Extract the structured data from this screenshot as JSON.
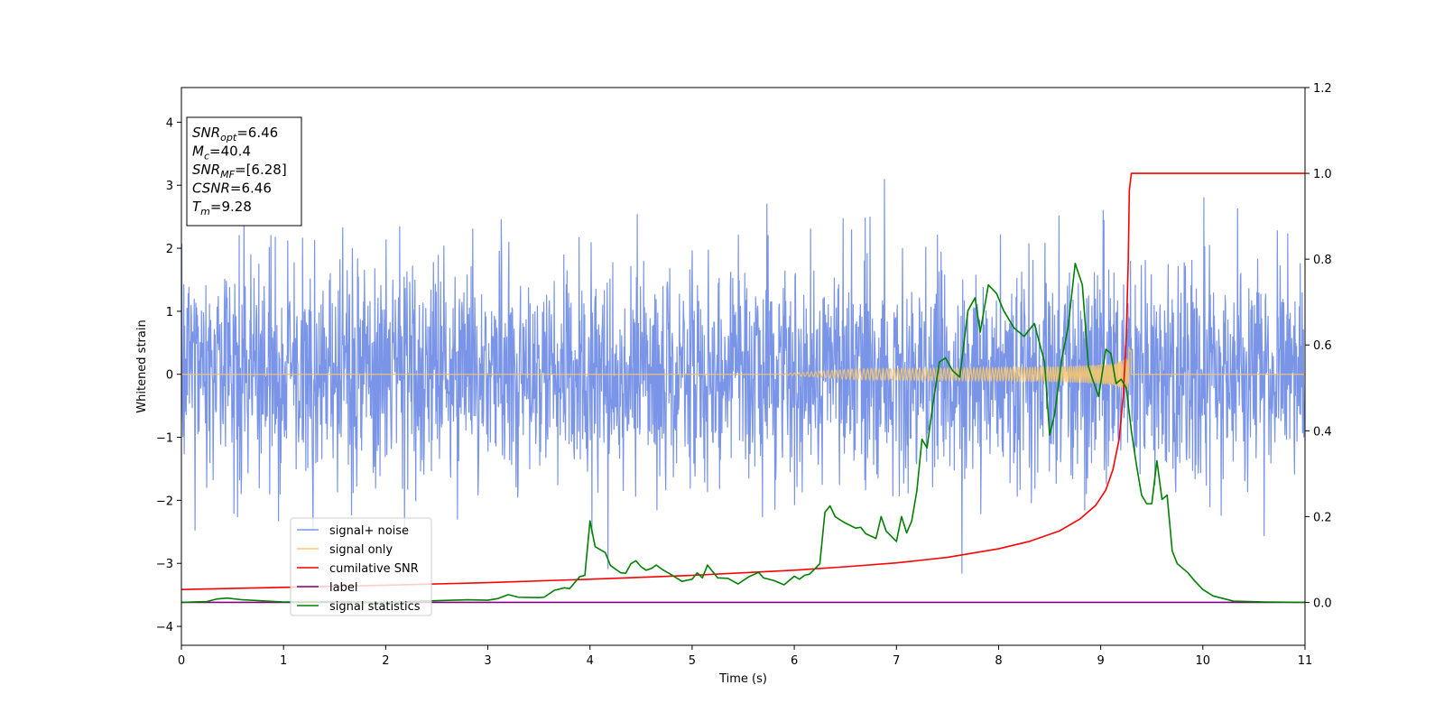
{
  "chart_data": {
    "type": "line",
    "xlabel": "Time (s)",
    "ylabel": "Whitened strain",
    "xlim": [
      0,
      11
    ],
    "ylim_left": [
      -4.3,
      4.55
    ],
    "ylim_right": [
      -0.1,
      1.2
    ],
    "x_ticks": [
      "0",
      "1",
      "2",
      "3",
      "4",
      "5",
      "6",
      "7",
      "8",
      "9",
      "10",
      "11"
    ],
    "y_left_ticks": [
      "−4",
      "−3",
      "−2",
      "−1",
      "0",
      "1",
      "2",
      "3",
      "4"
    ],
    "y_right_ticks": [
      "0.0",
      "0.2",
      "0.4",
      "0.6",
      "0.8",
      "1.0",
      "1.2"
    ],
    "legend_position": "lower-left",
    "grid": false,
    "info_box": {
      "position": "top-left",
      "lines": [
        {
          "base": "SNR",
          "sub": "opt",
          "value": "=6.46"
        },
        {
          "base": "M",
          "sub": "c",
          "value": "=40.4"
        },
        {
          "base": "SNR",
          "sub": "MF",
          "value": "=[6.28]"
        },
        {
          "base": "CSNR",
          "sub": "",
          "value": "=6.46"
        },
        {
          "base": "T",
          "sub": "m",
          "value": "=9.28"
        }
      ]
    },
    "series": [
      {
        "name": "signal+ noise",
        "color": "#7a95e8",
        "axis": "left",
        "style": "noise",
        "noise_sigma": 0.85,
        "noise_samples": 2800
      },
      {
        "name": "signal only",
        "color": "#f5c56e",
        "axis": "left",
        "style": "chirp",
        "merger_time": 9.28,
        "start_time": 5.8,
        "peak_amplitude": 0.45
      },
      {
        "name": "cumilative SNR",
        "color": "#ff0000",
        "axis": "right",
        "x": [
          0,
          1,
          2,
          3,
          4,
          5,
          6,
          6.5,
          7,
          7.5,
          8,
          8.3,
          8.6,
          8.8,
          8.95,
          9.05,
          9.12,
          9.18,
          9.22,
          9.25,
          9.27,
          9.28,
          9.3,
          11
        ],
        "y": [
          0.03,
          0.035,
          0.04,
          0.046,
          0.054,
          0.063,
          0.075,
          0.083,
          0.092,
          0.105,
          0.125,
          0.142,
          0.167,
          0.195,
          0.226,
          0.262,
          0.31,
          0.38,
          0.48,
          0.62,
          0.8,
          0.96,
          1.0,
          1.0
        ]
      },
      {
        "name": "label",
        "color": "#800080",
        "axis": "right",
        "x": [
          0,
          11
        ],
        "y": [
          0,
          0
        ]
      },
      {
        "name": "signal statistics",
        "color": "#008000",
        "axis": "right",
        "x": [
          0,
          0.25,
          0.35,
          0.45,
          0.6,
          1.0,
          1.5,
          2.0,
          2.5,
          2.8,
          3.0,
          3.1,
          3.2,
          3.3,
          3.5,
          3.55,
          3.65,
          3.75,
          3.8,
          3.9,
          3.95,
          4.0,
          4.05,
          4.15,
          4.2,
          4.3,
          4.35,
          4.4,
          4.45,
          4.5,
          4.55,
          4.6,
          4.65,
          4.7,
          4.8,
          4.9,
          5.0,
          5.05,
          5.1,
          5.15,
          5.25,
          5.35,
          5.45,
          5.55,
          5.65,
          5.7,
          5.8,
          5.9,
          6.0,
          6.05,
          6.1,
          6.15,
          6.25,
          6.3,
          6.35,
          6.4,
          6.45,
          6.5,
          6.6,
          6.65,
          6.7,
          6.8,
          6.85,
          6.9,
          7.0,
          7.05,
          7.1,
          7.15,
          7.2,
          7.25,
          7.3,
          7.35,
          7.42,
          7.48,
          7.55,
          7.62,
          7.7,
          7.77,
          7.82,
          7.9,
          7.98,
          8.05,
          8.15,
          8.25,
          8.35,
          8.45,
          8.5,
          8.55,
          8.62,
          8.68,
          8.75,
          8.82,
          8.88,
          8.92,
          8.98,
          9.05,
          9.1,
          9.15,
          9.2,
          9.25,
          9.3,
          9.35,
          9.4,
          9.45,
          9.5,
          9.55,
          9.6,
          9.65,
          9.7,
          9.75,
          9.85,
          9.92,
          10.0,
          10.1,
          10.3,
          10.6,
          11.0
        ],
        "y": [
          0,
          0.002,
          0.008,
          0.01,
          0.006,
          0.001,
          0.002,
          0.0,
          0.004,
          0.006,
          0.005,
          0.009,
          0.018,
          0.012,
          0.011,
          0.012,
          0.028,
          0.034,
          0.032,
          0.06,
          0.063,
          0.19,
          0.13,
          0.116,
          0.086,
          0.069,
          0.068,
          0.09,
          0.097,
          0.083,
          0.075,
          0.079,
          0.087,
          0.078,
          0.064,
          0.049,
          0.054,
          0.069,
          0.057,
          0.087,
          0.057,
          0.056,
          0.043,
          0.059,
          0.07,
          0.057,
          0.051,
          0.041,
          0.061,
          0.054,
          0.063,
          0.066,
          0.09,
          0.21,
          0.225,
          0.2,
          0.192,
          0.185,
          0.173,
          0.175,
          0.16,
          0.149,
          0.2,
          0.166,
          0.142,
          0.2,
          0.162,
          0.19,
          0.26,
          0.38,
          0.36,
          0.45,
          0.56,
          0.57,
          0.54,
          0.525,
          0.68,
          0.71,
          0.63,
          0.74,
          0.72,
          0.68,
          0.64,
          0.62,
          0.65,
          0.56,
          0.39,
          0.44,
          0.57,
          0.64,
          0.79,
          0.74,
          0.55,
          0.52,
          0.48,
          0.59,
          0.58,
          0.51,
          0.52,
          0.5,
          0.4,
          0.32,
          0.25,
          0.23,
          0.23,
          0.33,
          0.24,
          0.25,
          0.12,
          0.09,
          0.07,
          0.05,
          0.03,
          0.015,
          0.003,
          0.001,
          0
        ]
      }
    ]
  }
}
